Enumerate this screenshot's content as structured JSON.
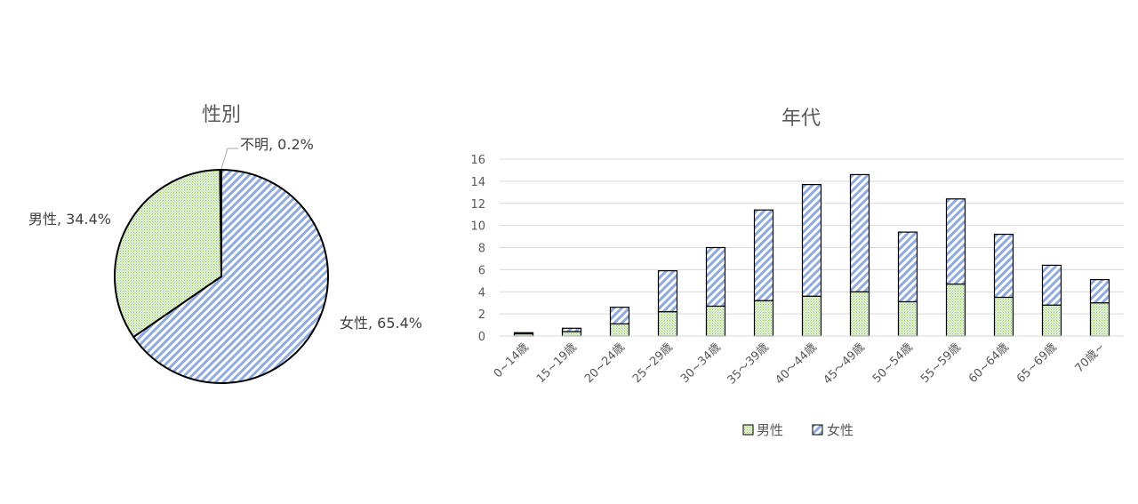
{
  "chart_data": [
    {
      "type": "pie",
      "title": "性別",
      "slices": [
        {
          "label": "女性",
          "value": 65.4,
          "display": "女性, 65.4%",
          "fill": "stripe"
        },
        {
          "label": "男性",
          "value": 34.4,
          "display": "男性, 34.4%",
          "fill": "dots"
        },
        {
          "label": "不明",
          "value": 0.2,
          "display": "不明, 0.2%",
          "fill": "none"
        }
      ]
    },
    {
      "type": "bar",
      "stacked": true,
      "title": "年代",
      "categories": [
        "0~14歳",
        "15~19歳",
        "20~24歳",
        "25~29歳",
        "30~34歳",
        "35～39歳",
        "40～44歳",
        "45～49歳",
        "50~54歳",
        "55~59歳",
        "60~64歳",
        "65~69歳",
        "70歳~"
      ],
      "series": [
        {
          "name": "男性",
          "values": [
            0.2,
            0.4,
            1.1,
            2.2,
            2.7,
            3.2,
            3.6,
            4.0,
            3.1,
            4.7,
            3.5,
            2.8,
            3.0
          ]
        },
        {
          "name": "女性",
          "values": [
            0.1,
            0.3,
            1.5,
            3.7,
            5.3,
            8.2,
            10.1,
            10.6,
            6.3,
            7.7,
            5.7,
            3.6,
            2.1
          ]
        }
      ],
      "ylim": [
        0,
        16
      ],
      "yticks": [
        0,
        2,
        4,
        6,
        8,
        10,
        12,
        14,
        16
      ],
      "grid": true,
      "legend": "bottom"
    }
  ],
  "colors": {
    "male_fill": "#e2efd9",
    "male_dots": "#92d050",
    "female_stripe": "#8faadc",
    "outline": "#000000",
    "grid": "#d9d9d9",
    "text": "#595959"
  }
}
